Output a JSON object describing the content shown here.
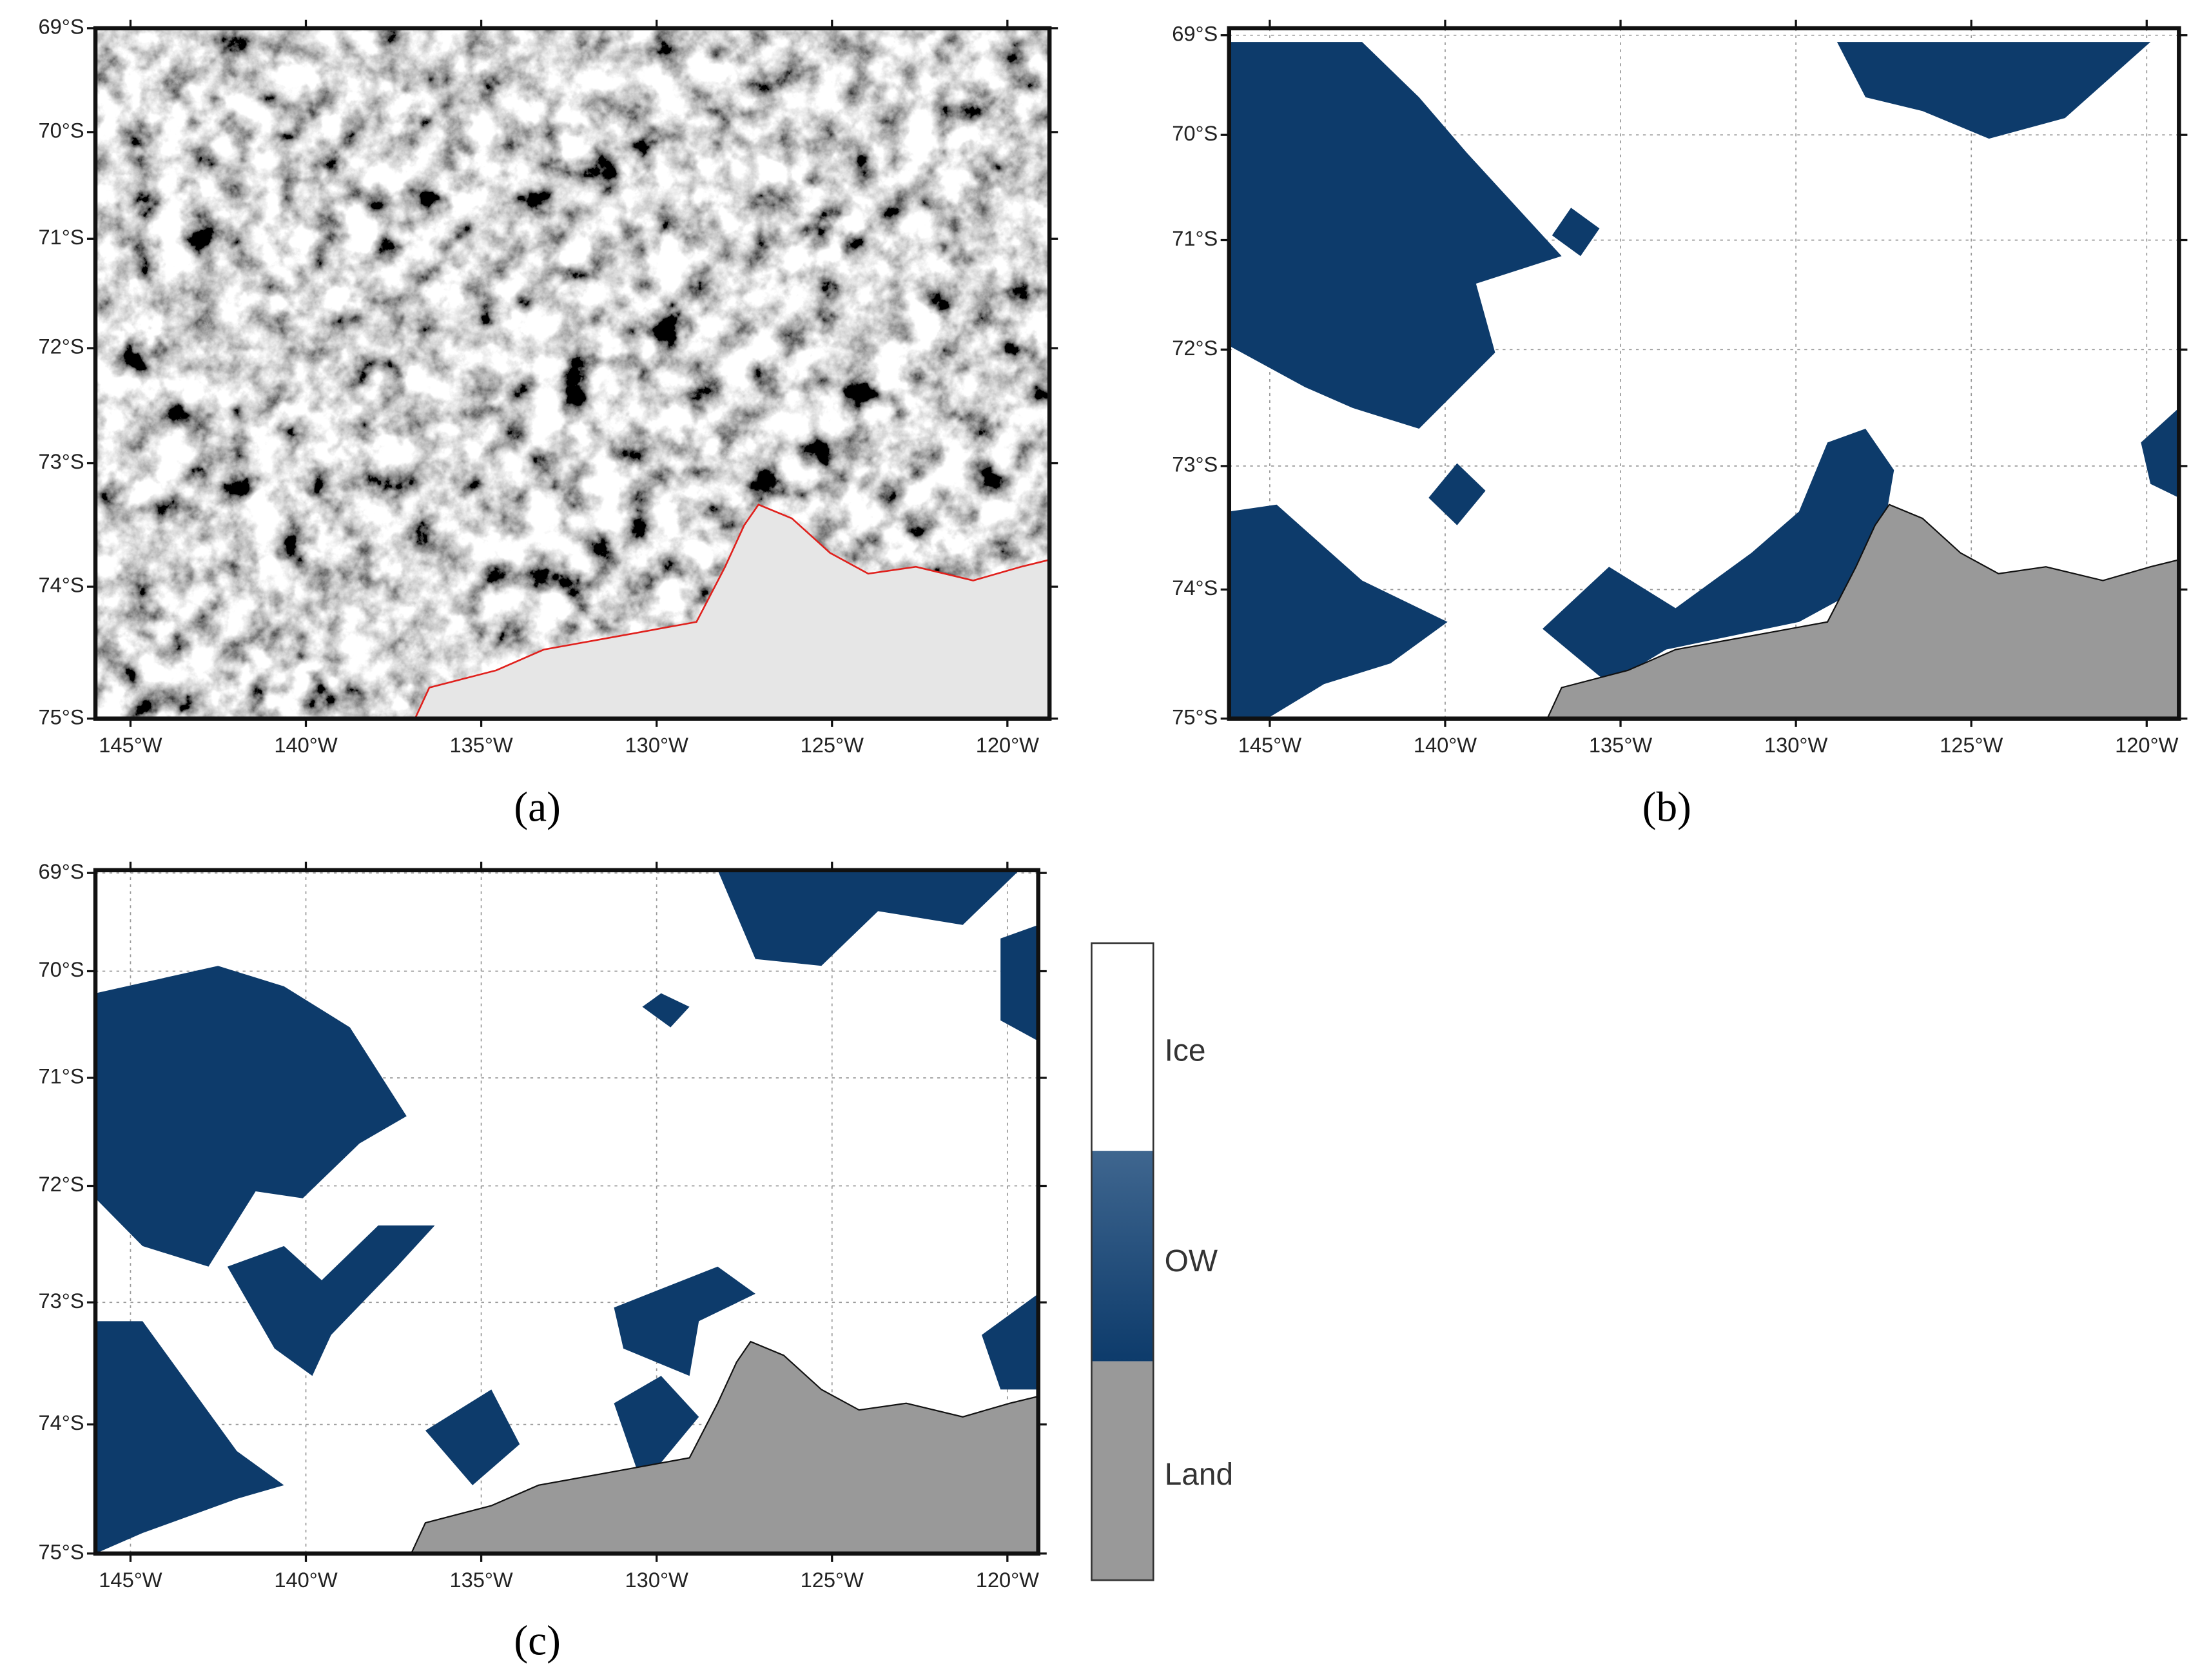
{
  "panels": [
    {
      "label": "(a)",
      "lat_labels": [
        "69°S",
        "70°S",
        "71°S",
        "72°S",
        "73°S",
        "74°S",
        "75°S"
      ],
      "lon_labels": [
        "145°W",
        "140°W",
        "135°W",
        "130°W",
        "125°W",
        "120°W"
      ]
    },
    {
      "label": "(b)",
      "lat_labels": [
        "69°S",
        "70°S",
        "71°S",
        "72°S",
        "73°S",
        "74°S",
        "75°S"
      ],
      "lon_labels": [
        "145°W",
        "140°W",
        "135°W",
        "130°W",
        "125°W",
        "120°W"
      ]
    },
    {
      "label": "(c)",
      "lat_labels": [
        "69°S",
        "70°S",
        "71°S",
        "72°S",
        "73°S",
        "74°S",
        "75°S"
      ],
      "lon_labels": [
        "145°W",
        "140°W",
        "135°W",
        "130°W",
        "125°W",
        "120°W"
      ]
    }
  ],
  "legend": {
    "items": [
      "Ice",
      "OW",
      "Land"
    ]
  }
}
